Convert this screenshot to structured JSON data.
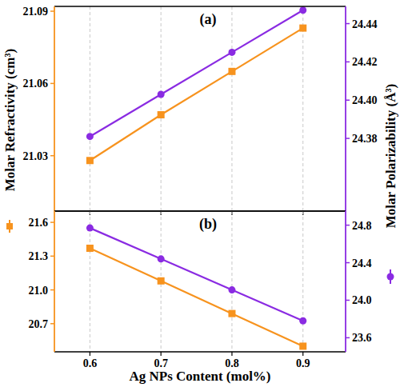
{
  "chart_data": [
    {
      "type": "line",
      "title": "(a)",
      "x": [
        0.6,
        0.7,
        0.8,
        0.9
      ],
      "xlim": [
        0.55,
        0.96
      ],
      "xticks": [
        0.6,
        0.7,
        0.8,
        0.9
      ],
      "y_label": "Molar Refractivity  (cm³)",
      "y2_label": "Molar Polarizability (Å³)",
      "ylim": [
        21.007,
        21.092
      ],
      "yticks": [
        21.03,
        21.06,
        21.09
      ],
      "y2lim": [
        24.342,
        24.449
      ],
      "y2ticks": [
        24.38,
        {
          "value": 24.4,
          "label": "24.40"
        },
        24.42,
        24.44
      ],
      "grid": "x",
      "tick_labels": "y",
      "series": [
        {
          "color": "#f7931e",
          "marker": "square",
          "values": [
            21.028,
            21.047,
            21.065,
            21.083
          ]
        },
        {
          "color": "#8a2be2",
          "marker": "circle",
          "axis": "y2",
          "values": [
            24.381,
            24.403,
            24.425,
            24.447
          ]
        }
      ]
    },
    {
      "type": "line",
      "title": "(b)",
      "x": [
        0.6,
        0.7,
        0.8,
        0.9
      ],
      "xlim": [
        0.55,
        0.96
      ],
      "xticks": [
        0.6,
        0.7,
        0.8,
        0.9
      ],
      "x_label": "Ag NPs Content (mol%)",
      "ylim": [
        20.45,
        21.7
      ],
      "yticks": [
        21.6,
        21.3,
        {
          "value": 21,
          "label": "21.0"
        },
        20.7
      ],
      "y2lim": [
        23.45,
        24.95
      ],
      "y2ticks": [
        24.8,
        24.4,
        {
          "value": 24,
          "label": "24.0"
        },
        23.6
      ],
      "grid": "x",
      "series": [
        {
          "color": "#f7931e",
          "marker": "square",
          "values": [
            21.37,
            21.08,
            20.79,
            20.5
          ]
        },
        {
          "color": "#8a2be2",
          "marker": "circle",
          "axis": "y2",
          "values": [
            24.77,
            24.44,
            24.11,
            23.78
          ]
        }
      ]
    }
  ]
}
